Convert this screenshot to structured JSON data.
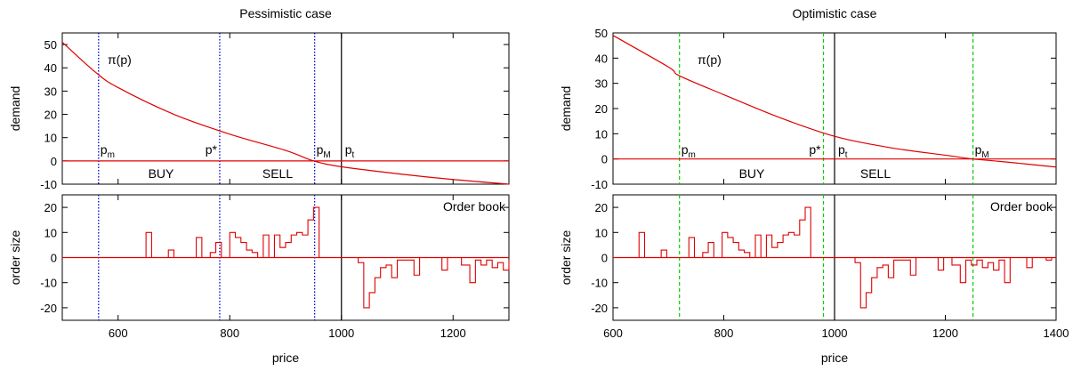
{
  "chart_data": [
    {
      "type": "line",
      "title": "Pessimistic case",
      "xlabel": "price",
      "xlim": [
        500,
        1300
      ],
      "xticks": [
        "600",
        "800",
        "1000",
        "1200"
      ],
      "demand_panel": {
        "ylabel": "demand",
        "ylim": [
          -10,
          55
        ],
        "yticks": [
          "50",
          "40",
          "30",
          "20",
          "10",
          "0",
          "-10"
        ],
        "curve_label": "π(p)",
        "curve_points": [
          [
            500,
            51
          ],
          [
            560,
            38
          ],
          [
            600,
            31.5
          ],
          [
            700,
            20
          ],
          [
            800,
            11.5
          ],
          [
            900,
            4.5
          ],
          [
            950,
            0
          ],
          [
            1000,
            -2.5
          ],
          [
            1100,
            -5.5
          ],
          [
            1200,
            -8
          ],
          [
            1300,
            -10
          ]
        ],
        "labels": {
          "p_m": {
            "text": "p",
            "sub": "m",
            "x": 565
          },
          "p_star": {
            "text": "p*",
            "x": 782
          },
          "p_M": {
            "text": "p",
            "sub": "M",
            "x": 952
          },
          "p_t": {
            "text": "p",
            "sub": "t",
            "x": 1000
          }
        },
        "regions": [
          "BUY",
          "SELL"
        ]
      },
      "order_panel": {
        "ylabel": "order size",
        "ylim": [
          -25,
          25
        ],
        "yticks": [
          "20",
          "10",
          "0",
          "-10",
          "-20"
        ],
        "legend_label": "Order book",
        "steps": [
          [
            500,
            0
          ],
          [
            650,
            10
          ],
          [
            660,
            0
          ],
          [
            690,
            3
          ],
          [
            700,
            0
          ],
          [
            740,
            8
          ],
          [
            750,
            0
          ],
          [
            765,
            2
          ],
          [
            775,
            6
          ],
          [
            785,
            0
          ],
          [
            800,
            10
          ],
          [
            810,
            8
          ],
          [
            820,
            6
          ],
          [
            830,
            3
          ],
          [
            840,
            2
          ],
          [
            850,
            0
          ],
          [
            860,
            9
          ],
          [
            870,
            0
          ],
          [
            880,
            9
          ],
          [
            890,
            4
          ],
          [
            900,
            6
          ],
          [
            910,
            9
          ],
          [
            920,
            10
          ],
          [
            930,
            9
          ],
          [
            940,
            15
          ],
          [
            950,
            20
          ],
          [
            960,
            0
          ],
          [
            1030,
            -2
          ],
          [
            1040,
            -20
          ],
          [
            1050,
            -14
          ],
          [
            1060,
            -8
          ],
          [
            1070,
            -4
          ],
          [
            1080,
            -3
          ],
          [
            1090,
            -8
          ],
          [
            1100,
            -1
          ],
          [
            1130,
            -7
          ],
          [
            1140,
            0
          ],
          [
            1180,
            -5
          ],
          [
            1190,
            0
          ],
          [
            1215,
            -3
          ],
          [
            1230,
            -10
          ],
          [
            1240,
            -1
          ],
          [
            1250,
            -3
          ],
          [
            1260,
            -1
          ],
          [
            1270,
            -4
          ],
          [
            1280,
            -2
          ],
          [
            1290,
            -5
          ],
          [
            1300,
            -1
          ]
        ]
      },
      "vlines": {
        "dotted_blue": [
          565,
          782,
          952
        ],
        "solid_black": [
          1000
        ]
      }
    },
    {
      "type": "line",
      "title": "Optimistic case",
      "xlabel": "price",
      "xlim": [
        600,
        1400
      ],
      "xticks": [
        "600",
        "800",
        "1000",
        "1200",
        "1400"
      ],
      "demand_panel": {
        "ylabel": "demand",
        "ylim": [
          -10,
          50
        ],
        "yticks": [
          "50",
          "40",
          "30",
          "20",
          "10",
          "0",
          "-10"
        ],
        "curve_label": "π(p)",
        "curve_points": [
          [
            600,
            49
          ],
          [
            700,
            36.5
          ],
          [
            720,
            33
          ],
          [
            800,
            25.5
          ],
          [
            900,
            16.5
          ],
          [
            1000,
            9
          ],
          [
            1100,
            4.5
          ],
          [
            1200,
            1.5
          ],
          [
            1250,
            0
          ],
          [
            1300,
            -1
          ],
          [
            1400,
            -3.2
          ]
        ],
        "labels": {
          "p_m": {
            "text": "p",
            "sub": "m",
            "x": 720
          },
          "p_star": {
            "text": "p*",
            "x": 980
          },
          "p_t": {
            "text": "p",
            "sub": "t",
            "x": 1000
          },
          "p_M": {
            "text": "p",
            "sub": "M",
            "x": 1250
          }
        },
        "regions": [
          "BUY",
          "SELL"
        ]
      },
      "order_panel": {
        "ylabel": "order size",
        "ylim": [
          -25,
          25
        ],
        "yticks": [
          "20",
          "10",
          "0",
          "-10",
          "-20"
        ],
        "legend_label": "Order book",
        "steps": [
          [
            600,
            0
          ],
          [
            647,
            10
          ],
          [
            657,
            0
          ],
          [
            687,
            3
          ],
          [
            697,
            0
          ],
          [
            737,
            8
          ],
          [
            747,
            0
          ],
          [
            762,
            2
          ],
          [
            772,
            6
          ],
          [
            782,
            0
          ],
          [
            797,
            10
          ],
          [
            807,
            8
          ],
          [
            817,
            6
          ],
          [
            827,
            3
          ],
          [
            837,
            2
          ],
          [
            847,
            0
          ],
          [
            857,
            9
          ],
          [
            867,
            0
          ],
          [
            877,
            9
          ],
          [
            887,
            4
          ],
          [
            897,
            6
          ],
          [
            907,
            9
          ],
          [
            917,
            10
          ],
          [
            927,
            9
          ],
          [
            937,
            15
          ],
          [
            947,
            20
          ],
          [
            957,
            0
          ],
          [
            1037,
            -2
          ],
          [
            1047,
            -20
          ],
          [
            1057,
            -14
          ],
          [
            1067,
            -8
          ],
          [
            1077,
            -4
          ],
          [
            1087,
            -3
          ],
          [
            1097,
            -8
          ],
          [
            1107,
            -1
          ],
          [
            1137,
            -7
          ],
          [
            1147,
            0
          ],
          [
            1187,
            -5
          ],
          [
            1197,
            0
          ],
          [
            1212,
            -3
          ],
          [
            1227,
            -10
          ],
          [
            1237,
            -1
          ],
          [
            1247,
            -3
          ],
          [
            1257,
            -1
          ],
          [
            1267,
            -4
          ],
          [
            1277,
            -2
          ],
          [
            1287,
            -5
          ],
          [
            1297,
            -1
          ],
          [
            1307,
            -10
          ],
          [
            1317,
            0
          ],
          [
            1347,
            -4
          ],
          [
            1357,
            0
          ],
          [
            1382,
            -1
          ],
          [
            1392,
            0
          ]
        ]
      },
      "vlines": {
        "dashed_green": [
          720,
          980,
          1250
        ],
        "solid_black": [
          1000
        ]
      }
    }
  ],
  "colors": {
    "curve": "#e00000",
    "dotted_line": "#0000cc",
    "dashed_line": "#00cc00",
    "frame": "#000000"
  }
}
